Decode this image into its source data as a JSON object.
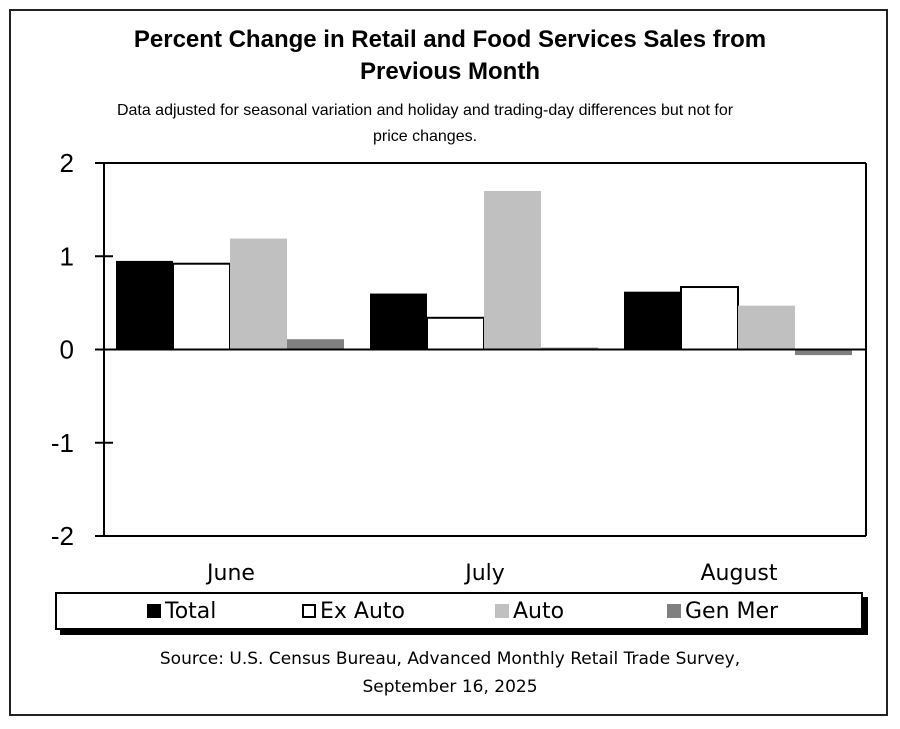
{
  "chart_data": {
    "type": "bar",
    "title": "Percent Change in Retail and Food Services Sales from Previous Month",
    "subtitle": "Data adjusted for seasonal variation and holiday and trading-day differences but not for price changes.",
    "categories": [
      "June",
      "July",
      "August"
    ],
    "series": [
      {
        "name": "Total",
        "color": "#000000",
        "values": [
          0.95,
          0.6,
          0.62
        ]
      },
      {
        "name": "Ex Auto",
        "color": "#ffffff",
        "values": [
          0.92,
          0.34,
          0.67
        ]
      },
      {
        "name": "Auto",
        "color": "#c0c0c0",
        "values": [
          1.19,
          1.7,
          0.47
        ]
      },
      {
        "name": "Gen Mer",
        "color": "#808080",
        "values": [
          0.11,
          0.02,
          -0.06
        ]
      }
    ],
    "yticks": [
      "2",
      "1",
      "0",
      "-1",
      "-2"
    ],
    "ylim": [
      -2,
      2
    ],
    "xlabel": "",
    "ylabel": "",
    "grid": false,
    "legend": "bottom",
    "source": "Source: U.S. Census Bureau, Advanced Monthly Retail Trade Survey, September 16, 2025"
  },
  "title_line1": "Percent Change in Retail and Food Services Sales from",
  "title_line2": "Previous Month",
  "subtitle_line1": "Data adjusted for seasonal variation and holiday and trading-day differences but not for",
  "subtitle_line2": "price changes.",
  "source_line1": "Source: U.S. Census Bureau, Advanced Monthly Retail Trade Survey,",
  "source_line2": "September 16, 2025"
}
